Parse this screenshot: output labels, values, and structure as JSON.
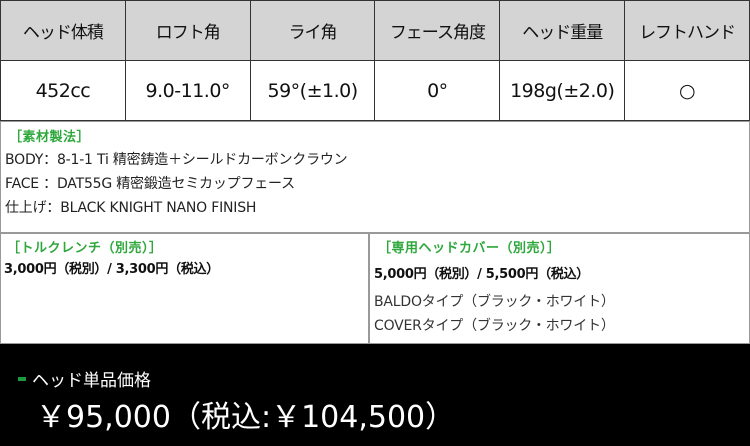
{
  "spec_table": {
    "headers": [
      "ヘッド体積",
      "ロフト角",
      "ライ角",
      "フェース角度",
      "ヘッド重量",
      "レフトハンド"
    ],
    "values": [
      "452cc",
      "9.0-11.0°",
      "59°(±1.0)",
      "0°",
      "198g(±2.0)",
      "○"
    ]
  },
  "materials": {
    "title": "［素材製法］",
    "lines": [
      "BODY：8-1-1 Ti 精密鋳造＋シールドカーボンクラウン",
      "FACE ：DAT55G 精密鍛造セミカップフェース",
      "仕上げ：BLACK KNIGHT NANO FINISH"
    ]
  },
  "torque_wrench": {
    "title": "［トルクレンチ（別売）］",
    "price": "3,000円（税別）/ 3,300円（税込）"
  },
  "head_cover": {
    "title": "［専用ヘッドカバー（別売）］",
    "price": "5,000円（税別）/ 5,500円（税込）",
    "types": [
      "BALDOタイプ（ブラック・ホワイト）",
      "COVERタイプ（ブラック・ホワイト）"
    ]
  },
  "footer": {
    "label": "ヘッド単品価格",
    "price": "￥95,000（税込:￥104,500）"
  },
  "colors": {
    "accent_green": "#2ea83c",
    "header_bg": "#d4d4d4",
    "footer_bg": "#000000"
  }
}
